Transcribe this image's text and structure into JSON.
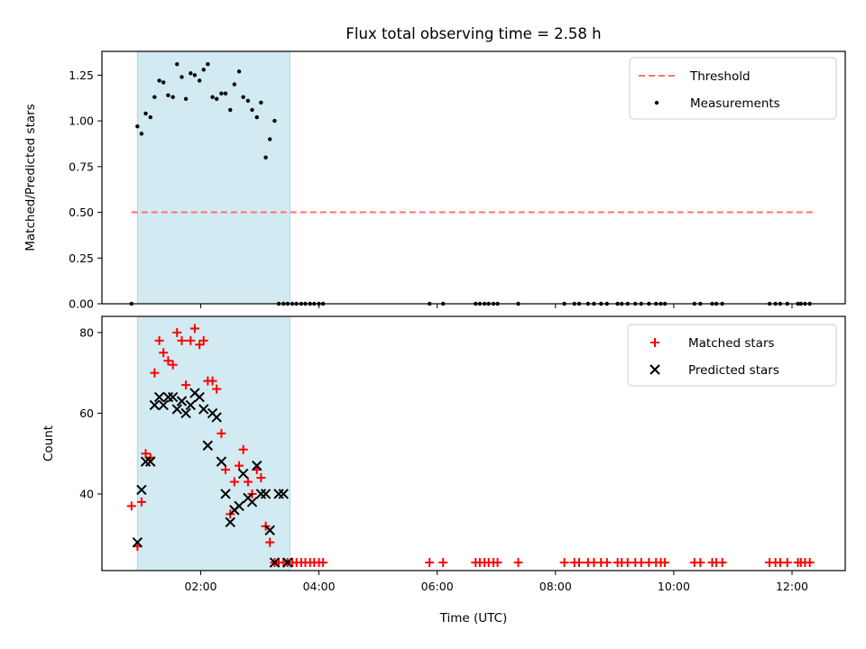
{
  "chart_data": [
    {
      "type": "scatter",
      "title": "Flux total observing time = 2.58 h",
      "xlabel": "",
      "ylabel": "Matched/Predicted stars",
      "xlim": [
        0.33,
        12.9
      ],
      "ylim": [
        0,
        1.38
      ],
      "yticks": [
        0,
        0.25,
        0.5,
        0.75,
        1.0,
        1.25
      ],
      "ytick_labels": [
        "0.00",
        "0.25",
        "0.50",
        "0.75",
        "1.00",
        "1.25"
      ],
      "xticks": [
        2,
        4,
        6,
        8,
        10,
        12
      ],
      "shaded_span": [
        0.93,
        3.51
      ],
      "legend": {
        "position": "upper right",
        "threshold_label": "Threshold",
        "measurements_label": "Measurements"
      },
      "colors": {
        "threshold": "#ff7070",
        "measurements": "#000000",
        "shade": "#add8e6"
      },
      "threshold": {
        "name": "Threshold",
        "x": [
          0.83,
          12.35
        ],
        "y": [
          0.5,
          0.5
        ]
      },
      "series": [
        {
          "name": "Measurements",
          "x": [
            0.83,
            0.93,
            1.0,
            1.07,
            1.15,
            1.22,
            1.3,
            1.37,
            1.45,
            1.53,
            1.6,
            1.68,
            1.75,
            1.83,
            1.9,
            1.98,
            2.05,
            2.12,
            2.2,
            2.27,
            2.35,
            2.42,
            2.5,
            2.57,
            2.65,
            2.72,
            2.8,
            2.87,
            2.95,
            3.02,
            3.1,
            3.17,
            3.25,
            3.32,
            3.4,
            3.47,
            3.55,
            3.62,
            3.7,
            3.77,
            3.85,
            3.92,
            4.0,
            4.07,
            5.87,
            6.1,
            6.65,
            6.72,
            6.8,
            6.87,
            6.95,
            7.02,
            7.37,
            8.15,
            8.32,
            8.4,
            8.55,
            8.65,
            8.77,
            8.87,
            9.05,
            9.12,
            9.22,
            9.35,
            9.45,
            9.58,
            9.7,
            9.78,
            9.85,
            10.35,
            10.45,
            10.65,
            10.72,
            10.82,
            11.62,
            11.72,
            11.8,
            11.92,
            12.1,
            12.15,
            12.22,
            12.3
          ],
          "y": [
            0.0,
            0.97,
            0.93,
            1.04,
            1.02,
            1.13,
            1.22,
            1.21,
            1.14,
            1.13,
            1.31,
            1.24,
            1.12,
            1.26,
            1.25,
            1.22,
            1.28,
            1.31,
            1.13,
            1.12,
            1.15,
            1.15,
            1.06,
            1.2,
            1.27,
            1.13,
            1.11,
            1.06,
            1.02,
            1.1,
            0.8,
            0.9,
            1.0,
            0.0,
            0.0,
            0.0,
            0.0,
            0.0,
            0.0,
            0.0,
            0.0,
            0.0,
            0.0,
            0.0,
            0.0,
            0.0,
            0.0,
            0.0,
            0.0,
            0.0,
            0.0,
            0.0,
            0.0,
            0.0,
            0.0,
            0.0,
            0.0,
            0.0,
            0.0,
            0.0,
            0.0,
            0.0,
            0.0,
            0.0,
            0.0,
            0.0,
            0.0,
            0.0,
            0.0,
            0.0,
            0.0,
            0.0,
            0.0,
            0.0,
            0.0,
            0.0,
            0.0,
            0.0,
            0.0,
            0.0,
            0.0,
            0.0
          ]
        }
      ]
    },
    {
      "type": "scatter",
      "title": "",
      "xlabel": "Time (UTC)",
      "ylabel": "Count",
      "xlim": [
        0.33,
        12.9
      ],
      "ylim": [
        21,
        84
      ],
      "yticks": [
        40,
        60,
        80
      ],
      "ytick_labels": [
        "40",
        "60",
        "80"
      ],
      "xticks": [
        2,
        4,
        6,
        8,
        10,
        12
      ],
      "xtick_labels": [
        "02:00",
        "04:00",
        "06:00",
        "08:00",
        "10:00",
        "12:00"
      ],
      "shaded_span": [
        0.93,
        3.51
      ],
      "legend": {
        "position": "upper right",
        "matched_label": "Matched stars",
        "predicted_label": "Predicted stars"
      },
      "colors": {
        "matched": "#ff0000",
        "predicted": "#000000",
        "shade": "#add8e6"
      },
      "series": [
        {
          "name": "Matched stars",
          "x": [
            0.83,
            0.93,
            1.0,
            1.07,
            1.15,
            1.22,
            1.3,
            1.37,
            1.45,
            1.53,
            1.6,
            1.68,
            1.75,
            1.83,
            1.9,
            1.98,
            2.05,
            2.12,
            2.2,
            2.27,
            2.35,
            2.42,
            2.5,
            2.57,
            2.65,
            2.72,
            2.8,
            2.87,
            2.95,
            3.02,
            3.1,
            3.17,
            3.25,
            3.32,
            3.4,
            3.47,
            3.55,
            3.62,
            3.7,
            3.77,
            3.85,
            3.92,
            4.0,
            4.07,
            5.87,
            6.1,
            6.65,
            6.72,
            6.8,
            6.87,
            6.95,
            7.02,
            7.37,
            8.15,
            8.32,
            8.4,
            8.55,
            8.65,
            8.77,
            8.87,
            9.05,
            9.12,
            9.22,
            9.35,
            9.45,
            9.58,
            9.7,
            9.78,
            9.85,
            10.35,
            10.45,
            10.65,
            10.72,
            10.82,
            11.62,
            11.72,
            11.8,
            11.92,
            12.1,
            12.15,
            12.22,
            12.3
          ],
          "y": [
            37,
            27,
            38,
            50,
            49,
            70,
            78,
            75,
            73,
            72,
            80,
            78,
            67,
            78,
            81,
            77,
            78,
            68,
            68,
            66,
            55,
            46,
            35,
            43,
            47,
            51,
            43,
            40,
            46,
            44,
            32,
            28,
            23,
            23,
            23,
            23,
            23,
            23,
            23,
            23,
            23,
            23,
            23,
            23,
            23,
            23,
            23,
            23,
            23,
            23,
            23,
            23,
            23,
            23,
            23,
            23,
            23,
            23,
            23,
            23,
            23,
            23,
            23,
            23,
            23,
            23,
            23,
            23,
            23,
            23,
            23,
            23,
            23,
            23,
            23,
            23,
            23,
            23,
            23,
            23,
            23,
            23
          ]
        },
        {
          "name": "Predicted stars",
          "x": [
            0.93,
            1.0,
            1.07,
            1.15,
            1.22,
            1.3,
            1.37,
            1.45,
            1.53,
            1.6,
            1.68,
            1.75,
            1.83,
            1.9,
            1.98,
            2.05,
            2.12,
            2.2,
            2.27,
            2.35,
            2.42,
            2.5,
            2.57,
            2.65,
            2.72,
            2.8,
            2.87,
            2.95,
            3.02,
            3.1,
            3.17,
            3.25,
            3.32,
            3.4,
            3.47
          ],
          "y": [
            28,
            41,
            48,
            48,
            62,
            64,
            62,
            64,
            64,
            61,
            63,
            60,
            62,
            65,
            64,
            61,
            52,
            60,
            59,
            48,
            40,
            33,
            36,
            37,
            45,
            39,
            38,
            47,
            40,
            40,
            31,
            23,
            40,
            40,
            23
          ]
        }
      ]
    }
  ]
}
